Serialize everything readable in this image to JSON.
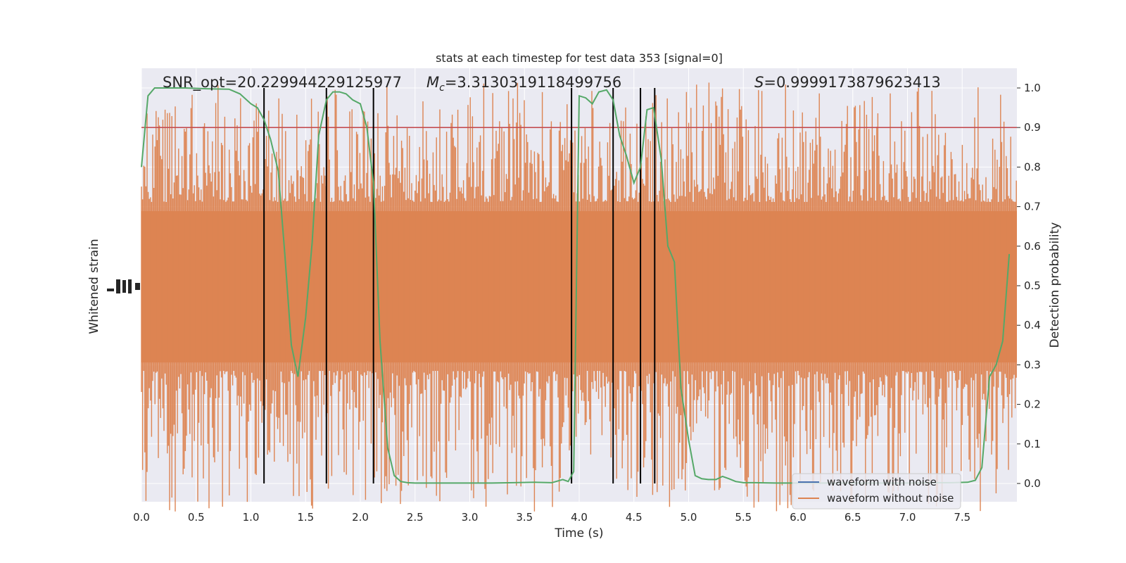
{
  "chart_data": {
    "type": "line",
    "title": "stats at each timestep for test data 353 [signal=0]",
    "xlabel": "Time (s)",
    "ylabel_left": "Whitened strain",
    "ylabel_right": "Detection probability",
    "xlim": [
      0.0,
      8.0
    ],
    "ylim_right": [
      -0.05,
      1.05
    ],
    "xticks": [
      "0.0",
      "0.5",
      "1.0",
      "1.5",
      "2.0",
      "2.5",
      "3.0",
      "3.5",
      "4.0",
      "4.5",
      "5.0",
      "5.5",
      "6.0",
      "6.5",
      "7.0",
      "7.5"
    ],
    "yticks_right": [
      "0.0",
      "0.1",
      "0.2",
      "0.3",
      "0.4",
      "0.5",
      "0.6",
      "0.7",
      "0.8",
      "0.9",
      "1.0"
    ],
    "grid": true,
    "annotations": {
      "snr": "SNR_opt=20.229944229125977",
      "mc": "=3.3130319118499756",
      "mc_symbol": "M",
      "mc_subscript": "c",
      "s": "=0.9999173879623413",
      "s_symbol": "S"
    },
    "threshold": {
      "y": 0.9,
      "color": "#c44e52"
    },
    "vertical_lines_x": [
      1.12,
      1.69,
      2.12,
      3.93,
      4.31,
      4.56,
      4.69
    ],
    "series": [
      {
        "name": "waveform with noise",
        "color": "#4c72b0",
        "style": "noise-band"
      },
      {
        "name": "waveform without noise",
        "color": "#dd8452",
        "style": "noise-band"
      },
      {
        "color": "#55a868",
        "x": [
          0.0,
          0.06,
          0.12,
          0.2,
          0.4,
          0.6,
          0.8,
          0.9,
          1.0,
          1.06,
          1.12,
          1.18,
          1.25,
          1.31,
          1.37,
          1.43,
          1.5,
          1.56,
          1.62,
          1.69,
          1.75,
          1.81,
          1.87,
          1.93,
          2.0,
          2.06,
          2.12,
          2.18,
          2.25,
          2.31,
          2.37,
          2.43,
          2.5,
          2.6,
          2.8,
          3.0,
          3.2,
          3.4,
          3.6,
          3.75,
          3.85,
          3.9,
          3.95,
          4.0,
          4.06,
          4.12,
          4.18,
          4.25,
          4.31,
          4.37,
          4.43,
          4.5,
          4.56,
          4.62,
          4.68,
          4.75,
          4.81,
          4.87,
          4.93,
          5.0,
          5.06,
          5.12,
          5.18,
          5.25,
          5.31,
          5.37,
          5.43,
          5.5,
          5.6,
          5.8,
          6.0,
          6.2,
          6.4,
          6.6,
          6.8,
          7.0,
          7.2,
          7.4,
          7.55,
          7.62,
          7.68,
          7.75,
          7.81,
          7.87,
          7.93
        ],
        "y": [
          0.8,
          0.98,
          1.0,
          1.0,
          1.0,
          0.998,
          0.997,
          0.985,
          0.96,
          0.95,
          0.92,
          0.87,
          0.79,
          0.58,
          0.35,
          0.27,
          0.42,
          0.61,
          0.88,
          0.97,
          0.99,
          0.99,
          0.985,
          0.97,
          0.96,
          0.9,
          0.76,
          0.36,
          0.09,
          0.02,
          0.005,
          0.002,
          0.001,
          0.001,
          0.001,
          0.001,
          0.001,
          0.002,
          0.003,
          0.002,
          0.01,
          0.005,
          0.03,
          0.98,
          0.975,
          0.96,
          0.99,
          0.995,
          0.97,
          0.88,
          0.83,
          0.76,
          0.8,
          0.945,
          0.95,
          0.82,
          0.6,
          0.56,
          0.24,
          0.11,
          0.02,
          0.012,
          0.01,
          0.01,
          0.018,
          0.012,
          0.005,
          0.002,
          0.002,
          0.001,
          0.001,
          0.001,
          0.001,
          0.001,
          0.001,
          0.001,
          0.002,
          0.002,
          0.003,
          0.008,
          0.04,
          0.27,
          0.3,
          0.36,
          0.58
        ]
      }
    ]
  }
}
